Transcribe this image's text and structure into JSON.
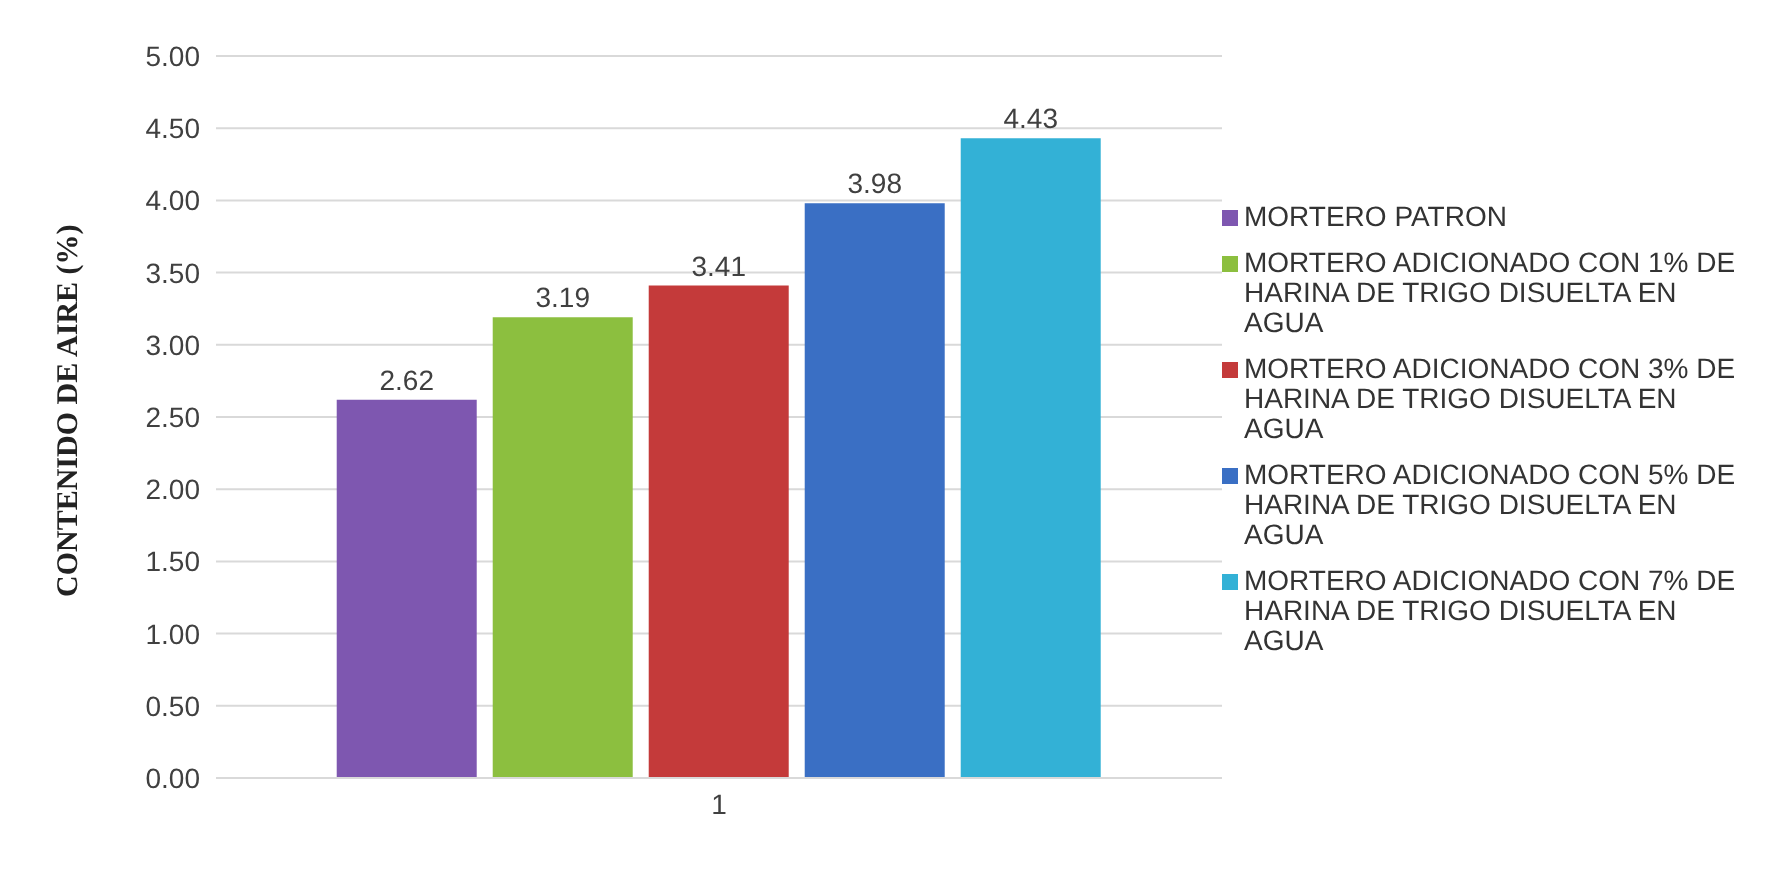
{
  "chart_data": {
    "type": "bar",
    "ylabel": "CONTENIDO DE AIRE (%)",
    "categories": [
      "1"
    ],
    "series": [
      {
        "name": "MORTERO PATRON",
        "color": "#7e57b0",
        "values": [
          2.62
        ]
      },
      {
        "name": "MORTERO ADICIONADO CON 1% DE HARINA DE TRIGO DISUELTA EN AGUA",
        "color": "#8cbf3f",
        "values": [
          3.19
        ]
      },
      {
        "name": "MORTERO ADICIONADO CON 3% DE HARINA DE TRIGO DISUELTA EN AGUA",
        "color": "#c43a3a",
        "values": [
          3.41
        ]
      },
      {
        "name": "MORTERO ADICIONADO CON 5% DE HARINA DE TRIGO DISUELTA EN AGUA",
        "color": "#3a6fc4",
        "values": [
          3.98
        ]
      },
      {
        "name": "MORTERO ADICIONADO CON 7% DE HARINA DE TRIGO DISUELTA EN AGUA",
        "color": "#33b1d6",
        "values": [
          4.43
        ]
      }
    ],
    "ylim": [
      0,
      5
    ],
    "yticks": [
      {
        "value": 0,
        "label": "0.00"
      },
      {
        "value": 0.5,
        "label": "0.50"
      },
      {
        "value": 1,
        "label": "1.00"
      },
      {
        "value": 1.5,
        "label": "1.50"
      },
      {
        "value": 2,
        "label": "2.00"
      },
      {
        "value": 2.5,
        "label": "2.50"
      },
      {
        "value": 3,
        "label": "3.00"
      },
      {
        "value": 3.5,
        "label": "3.50"
      },
      {
        "value": 4,
        "label": "4.00"
      },
      {
        "value": 4.5,
        "label": "4.50"
      },
      {
        "value": 5,
        "label": "5.00"
      }
    ],
    "grid": "y",
    "legend": "right",
    "data_labels": true
  }
}
